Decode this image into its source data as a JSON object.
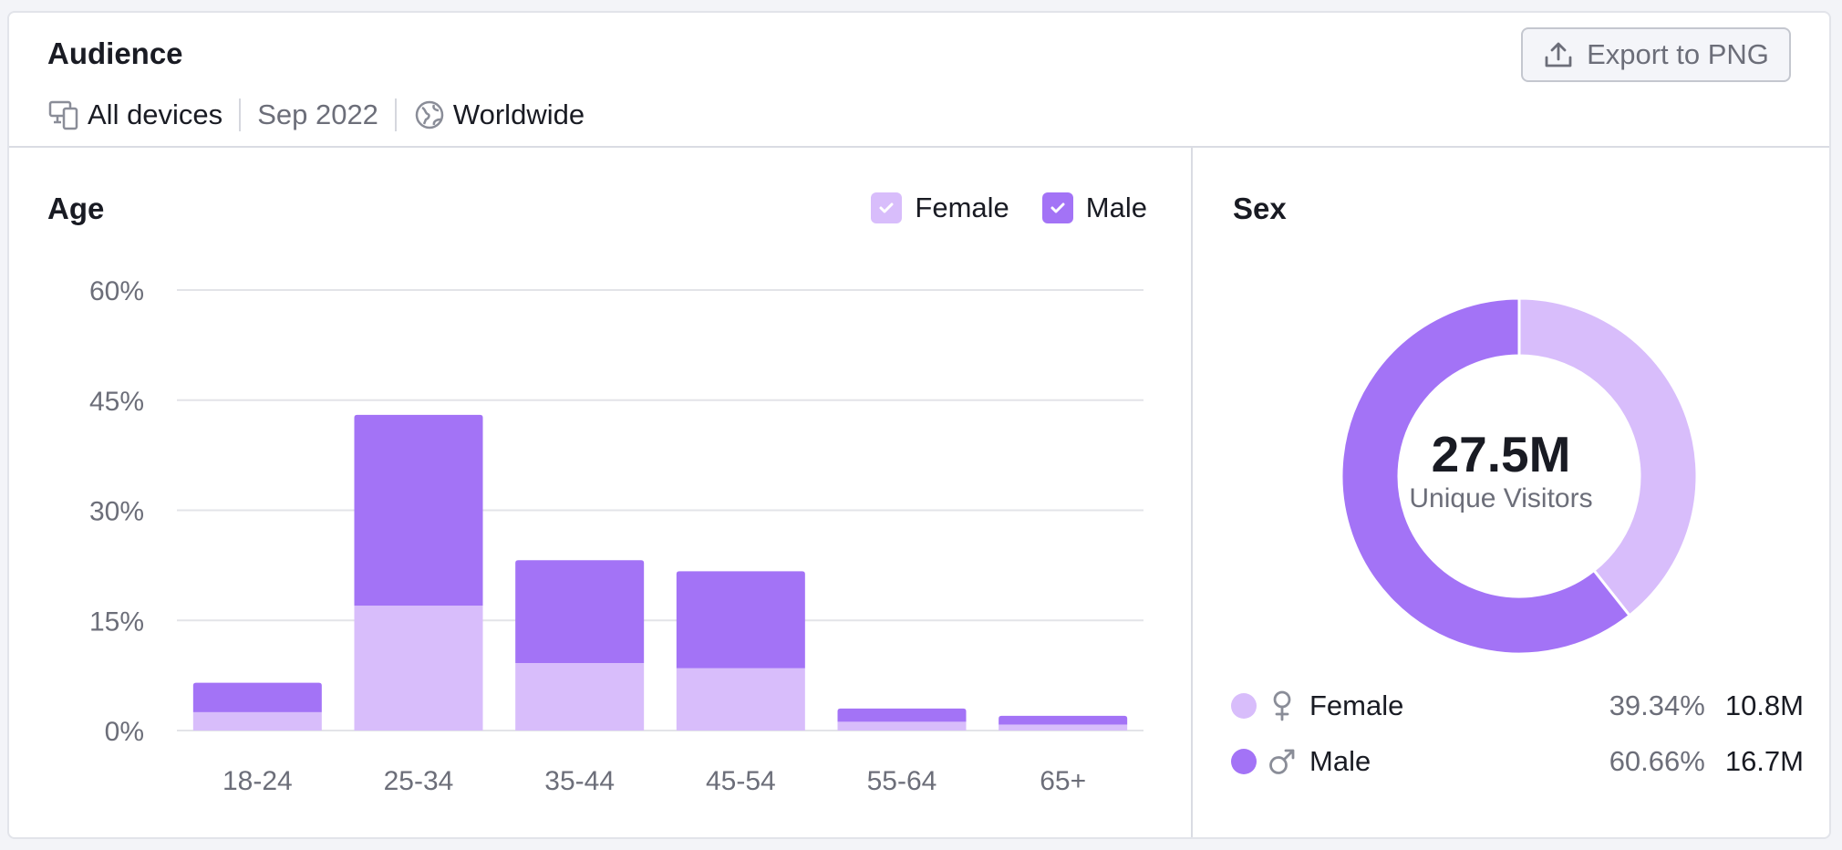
{
  "header": {
    "title": "Audience",
    "device": "All devices",
    "date": "Sep 2022",
    "region": "Worldwide",
    "export_label": "Export to PNG"
  },
  "age": {
    "title": "Age",
    "legend": {
      "female": "Female",
      "male": "Male"
    }
  },
  "sex": {
    "title": "Sex",
    "total_value": "27.5M",
    "total_label": "Unique Visitors",
    "female": {
      "name": "Female",
      "pct": "39.34%",
      "count": "10.8M"
    },
    "male": {
      "name": "Male",
      "pct": "60.66%",
      "count": "16.7M"
    }
  },
  "colors": {
    "female": "#d8bdfb",
    "male": "#a373f6",
    "grid": "#e3e4e8",
    "axis_text": "#6c6e79"
  },
  "chart_data": [
    {
      "type": "bar",
      "stacked": true,
      "title": "Age",
      "categories": [
        "18-24",
        "25-34",
        "35-44",
        "45-54",
        "55-64",
        "65+"
      ],
      "series": [
        {
          "name": "Female",
          "values": [
            2.5,
            17,
            9.2,
            8.5,
            1.2,
            0.8
          ]
        },
        {
          "name": "Male",
          "values": [
            4,
            26,
            14,
            13.2,
            1.8,
            1.2
          ]
        }
      ],
      "yticks": [
        "0%",
        "15%",
        "30%",
        "45%",
        "60%"
      ],
      "ylim": [
        0,
        60
      ],
      "grid": true,
      "legend": "top-right"
    },
    {
      "type": "pie",
      "title": "Sex",
      "labels": [
        "Female",
        "Male"
      ],
      "values": [
        39.34,
        60.66
      ],
      "donut": true
    }
  ]
}
